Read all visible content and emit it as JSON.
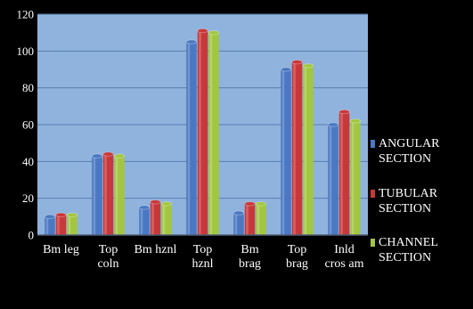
{
  "chart_data": {
    "type": "bar",
    "categories": [
      [
        "Bm leg"
      ],
      [
        "Top",
        "coln"
      ],
      [
        "Bm hznl"
      ],
      [
        "Top",
        "hznl"
      ],
      [
        "Bm",
        "brag"
      ],
      [
        "Top",
        "brag"
      ],
      [
        "Inld",
        "cros am"
      ]
    ],
    "series": [
      {
        "name": [
          "ANGULAR",
          "SECTION"
        ],
        "values": [
          10,
          43,
          15,
          105,
          12,
          90,
          60
        ]
      },
      {
        "name": [
          "TUBULAR",
          "SECTION"
        ],
        "values": [
          11,
          44,
          18,
          111,
          17,
          94,
          67
        ]
      },
      {
        "name": [
          "CHANNEL",
          "SECTION"
        ],
        "values": [
          11,
          43,
          17,
          110,
          17,
          92,
          62
        ]
      }
    ],
    "ylim": [
      0,
      120
    ],
    "yticks": [
      0,
      20,
      40,
      60,
      80,
      100,
      120
    ],
    "grid": true,
    "legend_position": "right",
    "colors": {
      "page_background": "#000000",
      "plot_background": "#8fb3dd",
      "gridline": "#5a7fae",
      "text": "#ffffff",
      "series": [
        "#4a78c2",
        "#c8383a",
        "#a2c640"
      ]
    }
  }
}
